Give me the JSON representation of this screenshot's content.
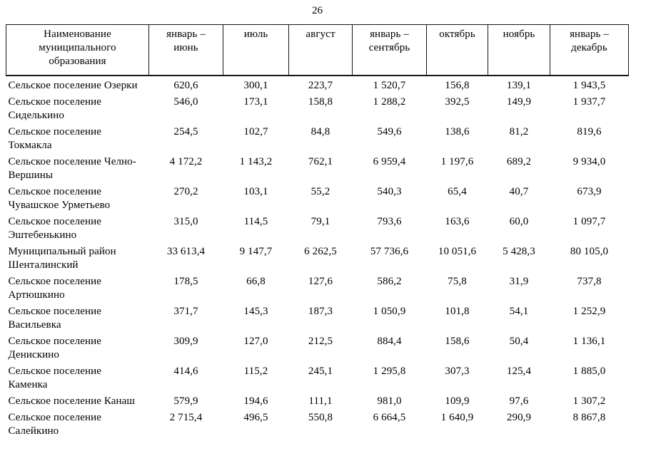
{
  "page_number": "26",
  "colors": {
    "paper": "#ffffff",
    "ink": "#000000",
    "border": "#161616"
  },
  "table": {
    "columns": [
      "Наименование\nмуниципального\nобразования",
      "январь –\nиюнь",
      "июль",
      "август",
      "январь –\nсентябрь",
      "октябрь",
      "ноябрь",
      "январь –\nдекабрь"
    ],
    "rows": [
      {
        "name": "Сельское поселение Озерки",
        "values": [
          "620,6",
          "300,1",
          "223,7",
          "1 520,7",
          "156,8",
          "139,1",
          "1 943,5"
        ]
      },
      {
        "name": "Сельское поселение\nСиделькино",
        "values": [
          "546,0",
          "173,1",
          "158,8",
          "1 288,2",
          "392,5",
          "149,9",
          "1 937,7"
        ]
      },
      {
        "name": "Сельское поселение\nТокмакла",
        "values": [
          "254,5",
          "102,7",
          "84,8",
          "549,6",
          "138,6",
          "81,2",
          "819,6"
        ]
      },
      {
        "name": "Сельское поселение Челно-\nВершины",
        "values": [
          "4 172,2",
          "1 143,2",
          "762,1",
          "6 959,4",
          "1 197,6",
          "689,2",
          "9 934,0"
        ]
      },
      {
        "name": "Сельское поселение\nЧувашское Урметьево",
        "values": [
          "270,2",
          "103,1",
          "55,2",
          "540,3",
          "65,4",
          "40,7",
          "673,9"
        ]
      },
      {
        "name": "Сельское поселение\nЭштебенькино",
        "values": [
          "315,0",
          "114,5",
          "79,1",
          "793,6",
          "163,6",
          "60,0",
          "1 097,7"
        ]
      },
      {
        "name": "Муниципальный район\nШенталинский",
        "values": [
          "33 613,4",
          "9 147,7",
          "6 262,5",
          "57 736,6",
          "10 051,6",
          "5 428,3",
          "80 105,0"
        ]
      },
      {
        "name": "Сельское поселение\nАртюшкино",
        "values": [
          "178,5",
          "66,8",
          "127,6",
          "586,2",
          "75,8",
          "31,9",
          "737,8"
        ]
      },
      {
        "name": "Сельское поселение\nВасильевка",
        "values": [
          "371,7",
          "145,3",
          "187,3",
          "1 050,9",
          "101,8",
          "54,1",
          "1 252,9"
        ]
      },
      {
        "name": "Сельское поселение\nДенискино",
        "values": [
          "309,9",
          "127,0",
          "212,5",
          "884,4",
          "158,6",
          "50,4",
          "1 136,1"
        ]
      },
      {
        "name": "Сельское поселение\nКаменка",
        "values": [
          "414,6",
          "115,2",
          "245,1",
          "1 295,8",
          "307,3",
          "125,4",
          "1 885,0"
        ]
      },
      {
        "name": "Сельское поселение Канаш",
        "values": [
          "579,9",
          "194,6",
          "111,1",
          "981,0",
          "109,9",
          "97,6",
          "1 307,2"
        ]
      },
      {
        "name": "Сельское поселение\nСалейкино",
        "values": [
          "2 715,4",
          "496,5",
          "550,8",
          "6 664,5",
          "1 640,9",
          "290,9",
          "8 867,8"
        ]
      }
    ]
  }
}
